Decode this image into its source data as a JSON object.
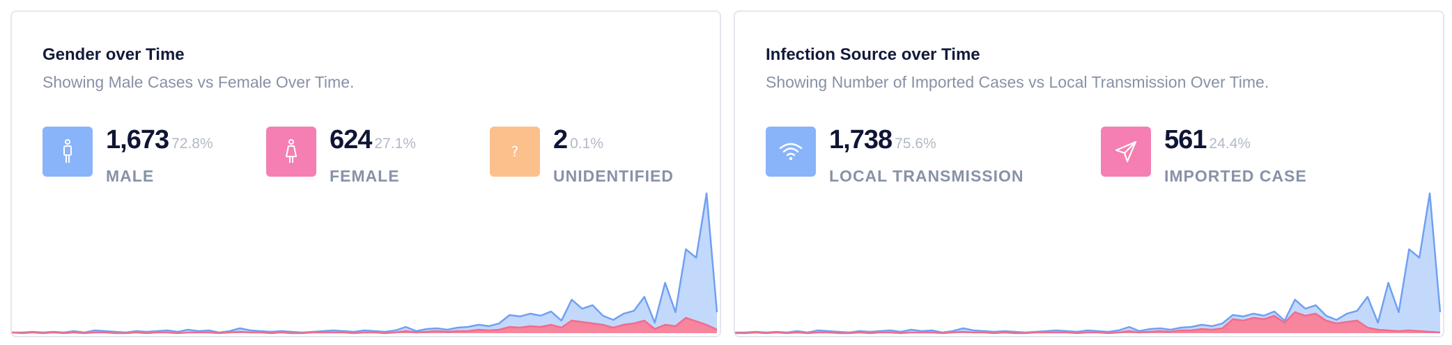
{
  "colors": {
    "blue": "#8ab4fa",
    "pink": "#f57fb2",
    "orange": "#fcc08c",
    "area_blue_fill": "#c3d9fc",
    "area_blue_line": "#6fa0f2",
    "area_pink_fill": "#f7859d",
    "area_pink_line": "#f16c8d"
  },
  "gender_card": {
    "title": "Gender over Time",
    "subtitle": "Showing Male Cases vs Female Over Time.",
    "stats": [
      {
        "value": "1,673",
        "percent": "72.8%",
        "label": "MALE",
        "icon": "male-icon",
        "color": "#8ab4fa"
      },
      {
        "value": "624",
        "percent": "27.1%",
        "label": "FEMALE",
        "icon": "female-icon",
        "color": "#f57fb2"
      },
      {
        "value": "2",
        "percent": "0.1%",
        "label": "UNIDENTIFIED",
        "icon": "question-icon",
        "color": "#fcc08c"
      }
    ]
  },
  "source_card": {
    "title": "Infection Source over Time",
    "subtitle": "Showing Number of Imported Cases vs Local Transmission Over Time.",
    "stats": [
      {
        "value": "1,738",
        "percent": "75.6%",
        "label": "LOCAL TRANSMISSION",
        "icon": "wifi-icon",
        "color": "#8ab4fa"
      },
      {
        "value": "561",
        "percent": "24.4%",
        "label": "IMPORTED CASE",
        "icon": "send-icon",
        "color": "#f57fb2"
      }
    ]
  },
  "chart_data": [
    {
      "type": "area",
      "ylim": [
        0,
        200
      ],
      "grid": false,
      "series": [
        {
          "values": [
            1,
            1,
            2,
            1,
            2,
            1,
            3,
            1,
            4,
            3,
            2,
            1,
            3,
            2,
            3,
            4,
            2,
            5,
            3,
            4,
            1,
            3,
            7,
            4,
            3,
            2,
            3,
            2,
            1,
            2,
            3,
            4,
            3,
            2,
            4,
            3,
            2,
            4,
            9,
            3,
            6,
            7,
            5,
            8,
            9,
            12,
            10,
            14,
            26,
            24,
            28,
            25,
            31,
            18,
            48,
            35,
            40,
            25,
            19,
            28,
            32,
            52,
            15,
            72,
            30,
            120,
            108,
            200,
            30
          ]
        },
        {
          "values": [
            1,
            0,
            1,
            0,
            1,
            0,
            1,
            0,
            1,
            1,
            0,
            0,
            1,
            0,
            1,
            1,
            0,
            1,
            1,
            1,
            0,
            1,
            2,
            1,
            1,
            0,
            1,
            0,
            0,
            1,
            1,
            1,
            1,
            0,
            1,
            1,
            0,
            1,
            3,
            1,
            2,
            3,
            2,
            3,
            3,
            5,
            4,
            5,
            9,
            8,
            10,
            9,
            12,
            8,
            18,
            16,
            14,
            12,
            8,
            12,
            14,
            18,
            6,
            12,
            10,
            22,
            17,
            12,
            5
          ]
        }
      ]
    },
    {
      "type": "area",
      "ylim": [
        0,
        200
      ],
      "grid": false,
      "series": [
        {
          "values": [
            1,
            1,
            2,
            1,
            2,
            1,
            3,
            1,
            4,
            3,
            2,
            1,
            3,
            2,
            3,
            4,
            2,
            5,
            3,
            4,
            1,
            3,
            7,
            4,
            3,
            2,
            3,
            2,
            1,
            2,
            3,
            4,
            3,
            2,
            4,
            3,
            2,
            4,
            9,
            3,
            6,
            7,
            5,
            8,
            9,
            12,
            10,
            14,
            26,
            24,
            28,
            25,
            31,
            18,
            48,
            35,
            40,
            25,
            19,
            28,
            32,
            52,
            15,
            72,
            30,
            120,
            108,
            200,
            30
          ]
        },
        {
          "values": [
            0,
            0,
            1,
            0,
            1,
            0,
            1,
            0,
            1,
            1,
            0,
            0,
            1,
            0,
            1,
            1,
            0,
            1,
            1,
            1,
            0,
            1,
            2,
            1,
            1,
            0,
            1,
            0,
            0,
            1,
            1,
            1,
            1,
            0,
            1,
            1,
            0,
            1,
            3,
            1,
            2,
            3,
            2,
            4,
            4,
            6,
            5,
            7,
            20,
            18,
            22,
            20,
            25,
            15,
            30,
            25,
            28,
            18,
            14,
            16,
            18,
            8,
            5,
            4,
            3,
            4,
            3,
            2,
            1
          ]
        }
      ]
    }
  ]
}
